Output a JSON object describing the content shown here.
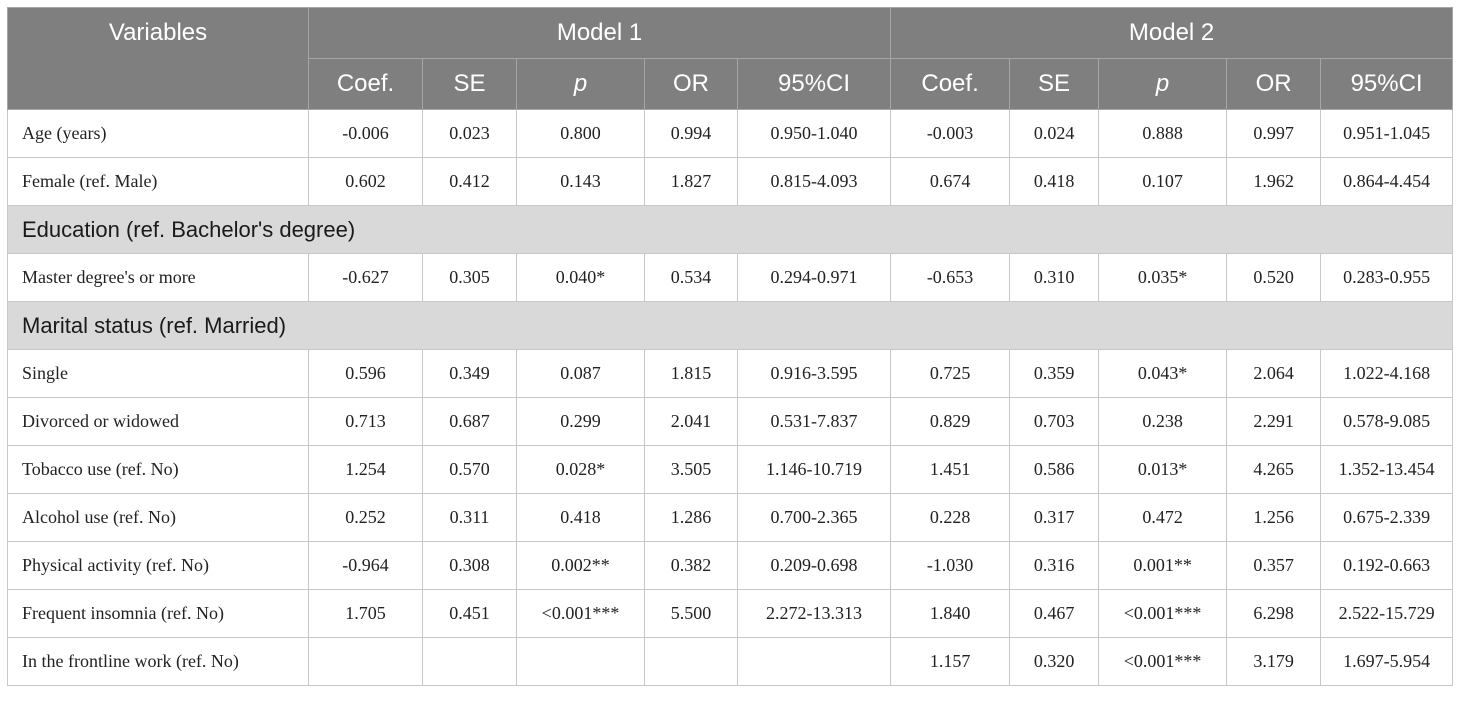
{
  "header": {
    "variables": "Variables",
    "model1": "Model 1",
    "model2": "Model 2",
    "cols": [
      "Coef.",
      "SE",
      "p",
      "OR",
      "95%CI"
    ]
  },
  "rows": [
    {
      "type": "data",
      "label": "Age (years)",
      "m1": [
        "-0.006",
        "0.023",
        "0.800",
        "0.994",
        "0.950-1.040"
      ],
      "m2": [
        "-0.003",
        "0.024",
        "0.888",
        "0.997",
        "0.951-1.045"
      ]
    },
    {
      "type": "data",
      "label": "Female (ref. Male)",
      "m1": [
        "0.602",
        "0.412",
        "0.143",
        "1.827",
        "0.815-4.093"
      ],
      "m2": [
        "0.674",
        "0.418",
        "0.107",
        "1.962",
        "0.864-4.454"
      ]
    },
    {
      "type": "section",
      "label": "Education (ref. Bachelor's degree)"
    },
    {
      "type": "data",
      "label": "Master degree's or more",
      "m1": [
        "-0.627",
        "0.305",
        "0.040*",
        "0.534",
        "0.294-0.971"
      ],
      "m2": [
        "-0.653",
        "0.310",
        "0.035*",
        "0.520",
        "0.283-0.955"
      ]
    },
    {
      "type": "section",
      "label": "Marital status (ref. Married)"
    },
    {
      "type": "data",
      "label": "Single",
      "m1": [
        "0.596",
        "0.349",
        "0.087",
        "1.815",
        "0.916-3.595"
      ],
      "m2": [
        "0.725",
        "0.359",
        "0.043*",
        "2.064",
        "1.022-4.168"
      ]
    },
    {
      "type": "data",
      "label": "Divorced or widowed",
      "m1": [
        "0.713",
        "0.687",
        "0.299",
        "2.041",
        "0.531-7.837"
      ],
      "m2": [
        "0.829",
        "0.703",
        "0.238",
        "2.291",
        "0.578-9.085"
      ]
    },
    {
      "type": "data",
      "label": "Tobacco use (ref. No)",
      "m1": [
        "1.254",
        "0.570",
        "0.028*",
        "3.505",
        "1.146-10.719"
      ],
      "m2": [
        "1.451",
        "0.586",
        "0.013*",
        "4.265",
        "1.352-13.454"
      ]
    },
    {
      "type": "data",
      "label": "Alcohol use (ref. No)",
      "m1": [
        "0.252",
        "0.311",
        "0.418",
        "1.286",
        "0.700-2.365"
      ],
      "m2": [
        "0.228",
        "0.317",
        "0.472",
        "1.256",
        "0.675-2.339"
      ]
    },
    {
      "type": "data",
      "label": "Physical activity (ref. No)",
      "m1": [
        "-0.964",
        "0.308",
        "0.002**",
        "0.382",
        "0.209-0.698"
      ],
      "m2": [
        "-1.030",
        "0.316",
        "0.001**",
        "0.357",
        "0.192-0.663"
      ]
    },
    {
      "type": "data",
      "label": "Frequent insomnia (ref. No)",
      "m1": [
        "1.705",
        "0.451",
        "<0.001***",
        "5.500",
        "2.272-13.313"
      ],
      "m2": [
        "1.840",
        "0.467",
        "<0.001***",
        "6.298",
        "2.522-15.729"
      ]
    },
    {
      "type": "data",
      "label": "In the frontline work (ref. No)",
      "m1": [
        "",
        "",
        "",
        "",
        ""
      ],
      "m2": [
        "1.157",
        "0.320",
        "<0.001***",
        "3.179",
        "1.697-5.954"
      ]
    }
  ]
}
